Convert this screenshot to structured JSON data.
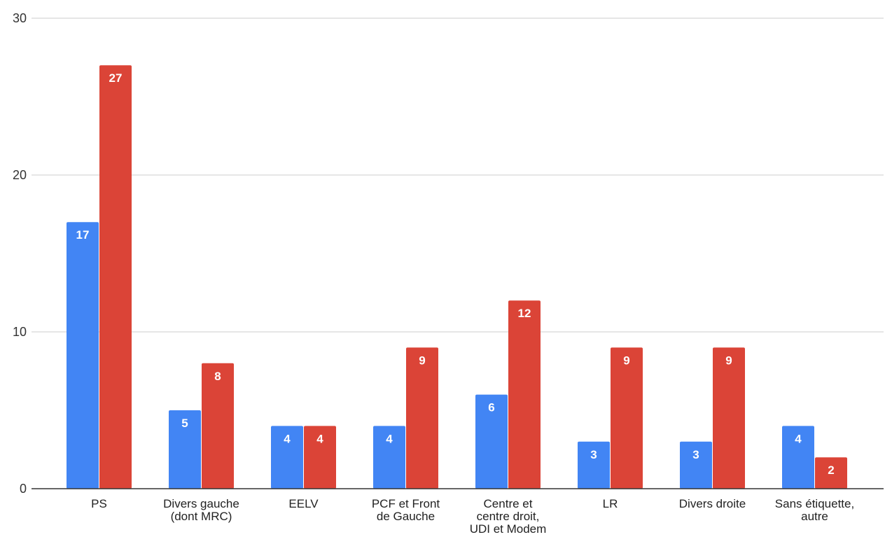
{
  "chart_data": {
    "type": "bar",
    "title": "",
    "xlabel": "",
    "ylabel": "",
    "ylim": [
      0,
      30
    ],
    "yticks": [
      0,
      10,
      20,
      30
    ],
    "grid": true,
    "categories": [
      [
        "PS"
      ],
      [
        "Divers gauche",
        "(dont MRC)"
      ],
      [
        "EELV"
      ],
      [
        "PCF et Front",
        "de Gauche"
      ],
      [
        "Centre et",
        "centre droit,",
        "UDI et Modem"
      ],
      [
        "LR"
      ],
      [
        "Divers droite"
      ],
      [
        "Sans étiquette,",
        "autre"
      ]
    ],
    "series": [
      {
        "color": "#4285f4",
        "values": [
          17,
          5,
          4,
          4,
          6,
          3,
          3,
          4
        ]
      },
      {
        "color": "#db4437",
        "values": [
          27,
          8,
          4,
          9,
          12,
          9,
          9,
          2
        ]
      }
    ]
  }
}
